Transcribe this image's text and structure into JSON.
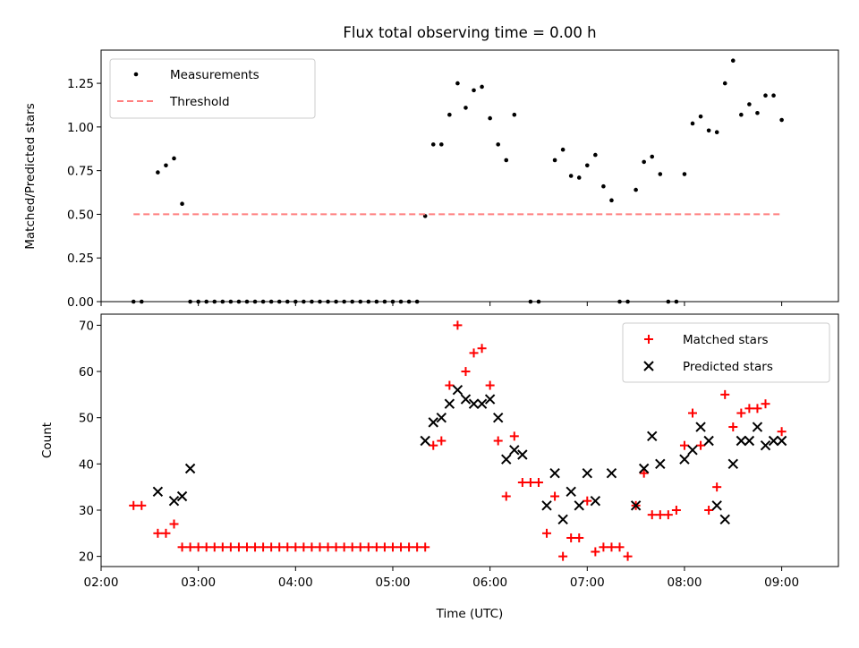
{
  "chart_data": [
    {
      "type": "scatter",
      "title": "Flux total observing time = 0.00 h",
      "ylabel": "Matched/Predicted stars",
      "xlabel": "",
      "xlim": [
        "02:00",
        "09:35"
      ],
      "ylim": [
        0,
        1.44
      ],
      "yticks": [
        "0.00",
        "0.25",
        "0.50",
        "0.75",
        "1.00",
        "1.25"
      ],
      "legend_position": "upper-left",
      "series": [
        {
          "name": "Measurements",
          "style": "dot",
          "color": "#000000",
          "points": [
            [
              "02:20",
              0.0
            ],
            [
              "02:25",
              0.0
            ],
            [
              "02:35",
              0.74
            ],
            [
              "02:40",
              0.78
            ],
            [
              "02:45",
              0.82
            ],
            [
              "02:50",
              0.56
            ],
            [
              "02:55",
              0.0
            ],
            [
              "03:00",
              0.0
            ],
            [
              "03:05",
              0.0
            ],
            [
              "03:10",
              0.0
            ],
            [
              "03:15",
              0.0
            ],
            [
              "03:20",
              0.0
            ],
            [
              "03:25",
              0.0
            ],
            [
              "03:30",
              0.0
            ],
            [
              "03:35",
              0.0
            ],
            [
              "03:40",
              0.0
            ],
            [
              "03:45",
              0.0
            ],
            [
              "03:50",
              0.0
            ],
            [
              "03:55",
              0.0
            ],
            [
              "04:00",
              0.0
            ],
            [
              "04:05",
              0.0
            ],
            [
              "04:10",
              0.0
            ],
            [
              "04:15",
              0.0
            ],
            [
              "04:20",
              0.0
            ],
            [
              "04:25",
              0.0
            ],
            [
              "04:30",
              0.0
            ],
            [
              "04:35",
              0.0
            ],
            [
              "04:40",
              0.0
            ],
            [
              "04:45",
              0.0
            ],
            [
              "04:50",
              0.0
            ],
            [
              "04:55",
              0.0
            ],
            [
              "05:00",
              0.0
            ],
            [
              "05:05",
              0.0
            ],
            [
              "05:10",
              0.0
            ],
            [
              "05:15",
              0.0
            ],
            [
              "05:20",
              0.49
            ],
            [
              "05:25",
              0.9
            ],
            [
              "05:30",
              0.9
            ],
            [
              "05:35",
              1.07
            ],
            [
              "05:40",
              1.25
            ],
            [
              "05:45",
              1.11
            ],
            [
              "05:50",
              1.21
            ],
            [
              "05:55",
              1.23
            ],
            [
              "06:00",
              1.05
            ],
            [
              "06:05",
              0.9
            ],
            [
              "06:10",
              0.81
            ],
            [
              "06:15",
              1.07
            ],
            [
              "06:25",
              0.0
            ],
            [
              "06:30",
              0.0
            ],
            [
              "06:40",
              0.81
            ],
            [
              "06:45",
              0.87
            ],
            [
              "06:50",
              0.72
            ],
            [
              "06:55",
              0.71
            ],
            [
              "07:00",
              0.78
            ],
            [
              "07:05",
              0.84
            ],
            [
              "07:10",
              0.66
            ],
            [
              "07:15",
              0.58
            ],
            [
              "07:20",
              0.0
            ],
            [
              "07:25",
              0.0
            ],
            [
              "07:30",
              0.64
            ],
            [
              "07:35",
              0.8
            ],
            [
              "07:40",
              0.83
            ],
            [
              "07:45",
              0.73
            ],
            [
              "07:50",
              0.0
            ],
            [
              "07:55",
              0.0
            ],
            [
              "08:00",
              0.73
            ],
            [
              "08:05",
              1.02
            ],
            [
              "08:10",
              1.06
            ],
            [
              "08:15",
              0.98
            ],
            [
              "08:20",
              0.97
            ],
            [
              "08:25",
              1.25
            ],
            [
              "08:30",
              1.38
            ],
            [
              "08:35",
              1.07
            ],
            [
              "08:40",
              1.13
            ],
            [
              "08:45",
              1.08
            ],
            [
              "08:50",
              1.18
            ],
            [
              "08:55",
              1.18
            ],
            [
              "09:00",
              1.04
            ]
          ]
        },
        {
          "name": "Threshold",
          "style": "dashed-line",
          "color": "#ff7f7f",
          "points": [
            [
              "02:20",
              0.5
            ],
            [
              "09:00",
              0.5
            ]
          ]
        }
      ]
    },
    {
      "type": "scatter",
      "title": "",
      "ylabel": "Count",
      "xlabel": "Time (UTC)",
      "xlim": [
        "02:00",
        "09:35"
      ],
      "ylim": [
        17.8,
        72.4
      ],
      "yticks": [
        "20",
        "30",
        "40",
        "50",
        "60",
        "70"
      ],
      "xticks": [
        "02:00",
        "03:00",
        "04:00",
        "05:00",
        "06:00",
        "07:00",
        "08:00",
        "09:00"
      ],
      "legend_position": "upper-right",
      "series": [
        {
          "name": "Matched stars",
          "marker": "plus",
          "color": "#ff0000",
          "points": [
            [
              "02:20",
              31
            ],
            [
              "02:25",
              31
            ],
            [
              "02:35",
              25
            ],
            [
              "02:40",
              25
            ],
            [
              "02:45",
              27
            ],
            [
              "02:50",
              22
            ],
            [
              "02:55",
              22
            ],
            [
              "03:00",
              22
            ],
            [
              "03:05",
              22
            ],
            [
              "03:10",
              22
            ],
            [
              "03:15",
              22
            ],
            [
              "03:20",
              22
            ],
            [
              "03:25",
              22
            ],
            [
              "03:30",
              22
            ],
            [
              "03:35",
              22
            ],
            [
              "03:40",
              22
            ],
            [
              "03:45",
              22
            ],
            [
              "03:50",
              22
            ],
            [
              "03:55",
              22
            ],
            [
              "04:00",
              22
            ],
            [
              "04:05",
              22
            ],
            [
              "04:10",
              22
            ],
            [
              "04:15",
              22
            ],
            [
              "04:20",
              22
            ],
            [
              "04:25",
              22
            ],
            [
              "04:30",
              22
            ],
            [
              "04:35",
              22
            ],
            [
              "04:40",
              22
            ],
            [
              "04:45",
              22
            ],
            [
              "04:50",
              22
            ],
            [
              "04:55",
              22
            ],
            [
              "05:00",
              22
            ],
            [
              "05:05",
              22
            ],
            [
              "05:10",
              22
            ],
            [
              "05:15",
              22
            ],
            [
              "05:20",
              22
            ],
            [
              "05:25",
              44
            ],
            [
              "05:30",
              45
            ],
            [
              "05:35",
              57
            ],
            [
              "05:40",
              70
            ],
            [
              "05:45",
              60
            ],
            [
              "05:50",
              64
            ],
            [
              "05:55",
              65
            ],
            [
              "06:00",
              57
            ],
            [
              "06:05",
              45
            ],
            [
              "06:10",
              33
            ],
            [
              "06:15",
              46
            ],
            [
              "06:20",
              36
            ],
            [
              "06:25",
              36
            ],
            [
              "06:30",
              36
            ],
            [
              "06:35",
              25
            ],
            [
              "06:40",
              33
            ],
            [
              "06:45",
              20
            ],
            [
              "06:50",
              24
            ],
            [
              "06:55",
              24
            ],
            [
              "07:00",
              32
            ],
            [
              "07:05",
              21
            ],
            [
              "07:10",
              22
            ],
            [
              "07:15",
              22
            ],
            [
              "07:20",
              22
            ],
            [
              "07:25",
              20
            ],
            [
              "07:30",
              31
            ],
            [
              "07:35",
              38
            ],
            [
              "07:40",
              29
            ],
            [
              "07:45",
              29
            ],
            [
              "07:50",
              29
            ],
            [
              "07:55",
              30
            ],
            [
              "08:00",
              44
            ],
            [
              "08:05",
              51
            ],
            [
              "08:10",
              44
            ],
            [
              "08:15",
              30
            ],
            [
              "08:20",
              35
            ],
            [
              "08:25",
              55
            ],
            [
              "08:30",
              48
            ],
            [
              "08:35",
              51
            ],
            [
              "08:40",
              52
            ],
            [
              "08:45",
              52
            ],
            [
              "08:50",
              53
            ],
            [
              "09:00",
              47
            ]
          ]
        },
        {
          "name": "Predicted stars",
          "marker": "x",
          "color": "#000000",
          "points": [
            [
              "02:35",
              34
            ],
            [
              "02:45",
              32
            ],
            [
              "02:50",
              33
            ],
            [
              "02:55",
              39
            ],
            [
              "05:20",
              45
            ],
            [
              "05:25",
              49
            ],
            [
              "05:30",
              50
            ],
            [
              "05:35",
              53
            ],
            [
              "05:40",
              56
            ],
            [
              "05:45",
              54
            ],
            [
              "05:50",
              53
            ],
            [
              "05:55",
              53
            ],
            [
              "06:00",
              54
            ],
            [
              "06:05",
              50
            ],
            [
              "06:10",
              41
            ],
            [
              "06:15",
              43
            ],
            [
              "06:20",
              42
            ],
            [
              "06:35",
              31
            ],
            [
              "06:40",
              38
            ],
            [
              "06:45",
              28
            ],
            [
              "06:50",
              34
            ],
            [
              "06:55",
              31
            ],
            [
              "07:00",
              38
            ],
            [
              "07:05",
              32
            ],
            [
              "07:15",
              38
            ],
            [
              "07:30",
              31
            ],
            [
              "07:35",
              39
            ],
            [
              "07:40",
              46
            ],
            [
              "07:45",
              40
            ],
            [
              "08:00",
              41
            ],
            [
              "08:05",
              43
            ],
            [
              "08:10",
              48
            ],
            [
              "08:15",
              45
            ],
            [
              "08:20",
              31
            ],
            [
              "08:25",
              28
            ],
            [
              "08:30",
              40
            ],
            [
              "08:35",
              45
            ],
            [
              "08:40",
              45
            ],
            [
              "08:45",
              48
            ],
            [
              "08:50",
              44
            ],
            [
              "08:55",
              45
            ],
            [
              "09:00",
              45
            ]
          ]
        }
      ]
    }
  ]
}
